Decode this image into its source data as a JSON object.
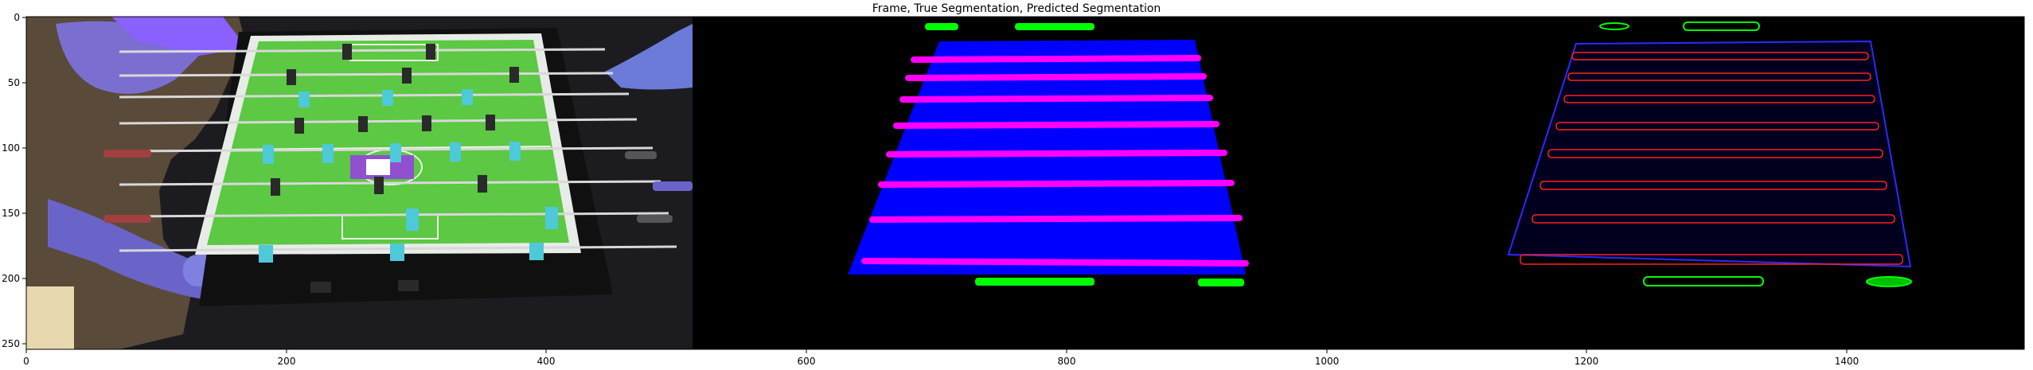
{
  "title": "Frame, True Segmentation, Predicted Segmentation",
  "x_ticks": [
    "0",
    "200",
    "400",
    "600",
    "800",
    "1000",
    "1200",
    "1400"
  ],
  "y_ticks": [
    "0",
    "50",
    "100",
    "150",
    "200",
    "250"
  ],
  "x_range": [
    0,
    1536
  ],
  "y_range": [
    0,
    256
  ],
  "panels": [
    "frame",
    "true-segmentation",
    "predicted-segmentation"
  ],
  "colors": {
    "background": "#000000",
    "table_surface": "#0000ff",
    "rods": "#ff00ff",
    "ball_markers": "#00ff00",
    "predicted_outline": "#ff2020",
    "predicted_fill": "#00001e",
    "field_green": "#5cc843",
    "player_cyan": "#4ec9d8"
  }
}
